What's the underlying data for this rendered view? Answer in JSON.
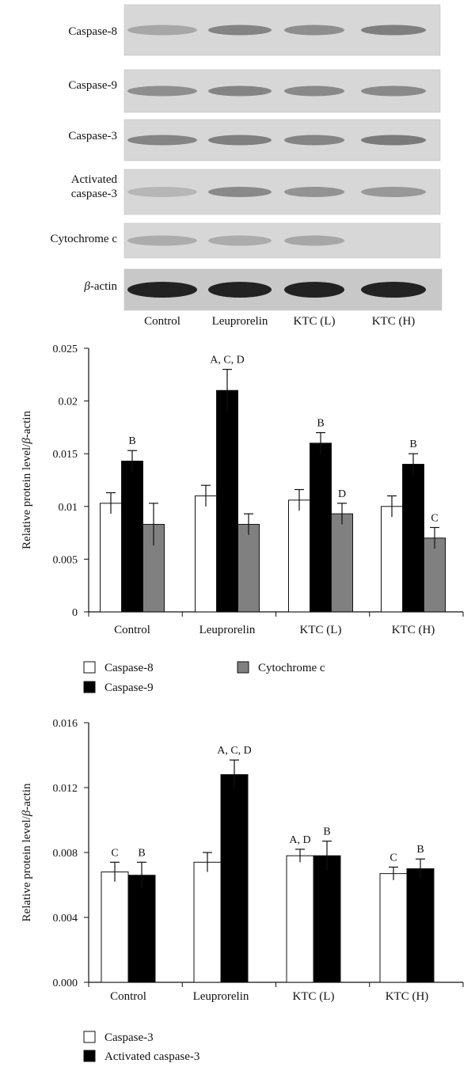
{
  "western_blot": {
    "rows": [
      {
        "label": "Caspase-8",
        "bands": [
          0.35,
          0.7,
          0.6,
          0.75
        ]
      },
      {
        "label": "Caspase-9",
        "bands": [
          0.6,
          0.7,
          0.65,
          0.65
        ]
      },
      {
        "label": "Caspase-3",
        "bands": [
          0.7,
          0.75,
          0.7,
          0.8
        ]
      },
      {
        "label_line1": "Activated",
        "label_line2": "caspase-3",
        "bands": [
          0.2,
          0.65,
          0.55,
          0.5
        ]
      },
      {
        "label": "Cytochrome c",
        "bands": [
          0.3,
          0.3,
          0.35,
          0.0
        ]
      },
      {
        "label_prefix": "β",
        "label_suffix": "-actin",
        "bands": [
          1.0,
          1.0,
          1.0,
          1.0
        ]
      }
    ],
    "lanes": [
      "Control",
      "Leuprorelin",
      "KTC (L)",
      "KTC (H)"
    ]
  },
  "chart_data": [
    {
      "type": "bar",
      "categories": [
        "Control",
        "Leuprorelin",
        "KTC (L)",
        "KTC (H)"
      ],
      "series": [
        {
          "name": "Caspase-8",
          "color": "#ffffff",
          "values": [
            0.0103,
            0.011,
            0.0106,
            0.01
          ],
          "errors": [
            0.001,
            0.001,
            0.001,
            0.001
          ],
          "labels": [
            "",
            "",
            "",
            ""
          ]
        },
        {
          "name": "Caspase-9",
          "color": "#000000",
          "values": [
            0.0143,
            0.021,
            0.016,
            0.014
          ],
          "errors": [
            0.001,
            0.002,
            0.001,
            0.001
          ],
          "labels": [
            "B",
            "A, C, D",
            "B",
            "B"
          ]
        },
        {
          "name": "Cytochrome c",
          "color": "#808080",
          "values": [
            0.0083,
            0.0083,
            0.0093,
            0.007
          ],
          "errors": [
            0.002,
            0.001,
            0.001,
            0.001
          ],
          "labels": [
            "",
            "",
            "D",
            "C"
          ]
        }
      ],
      "ylabel_prefix": "Relative protein level/",
      "ylabel_greek": "β",
      "ylabel_suffix": "-actin",
      "ylim": [
        0,
        0.025
      ],
      "yticks": [
        "0",
        "0.005",
        "0.01",
        "0.015",
        "0.02",
        "0.025"
      ],
      "legend": [
        {
          "name": "Caspase-8",
          "color": "#ffffff"
        },
        {
          "name": "Caspase-9",
          "color": "#000000"
        },
        {
          "name": "Cytochrome c",
          "color": "#808080"
        }
      ]
    },
    {
      "type": "bar",
      "categories": [
        "Control",
        "Leuprorelin",
        "KTC (L)",
        "KTC (H)"
      ],
      "series": [
        {
          "name": "Caspase-3",
          "color": "#ffffff",
          "values": [
            0.0068,
            0.0074,
            0.0078,
            0.0067
          ],
          "errors": [
            0.0006,
            0.0006,
            0.0004,
            0.0004
          ],
          "labels": [
            "C",
            "",
            "A, D",
            "C"
          ]
        },
        {
          "name": "Activated caspase-3",
          "color": "#000000",
          "values": [
            0.0066,
            0.0128,
            0.0078,
            0.007
          ],
          "errors": [
            0.0008,
            0.0009,
            0.0009,
            0.0006
          ],
          "labels": [
            "B",
            "A, C, D",
            "B",
            "B"
          ]
        }
      ],
      "ylabel_prefix": "Relative protein level/",
      "ylabel_greek": "β",
      "ylabel_suffix": "-actin",
      "ylim": [
        0,
        0.016
      ],
      "yticks": [
        "0.000",
        "0.004",
        "0.008",
        "0.012",
        "0.016"
      ],
      "legend": [
        {
          "name": "Caspase-3",
          "color": "#ffffff"
        },
        {
          "name": "Activated caspase-3",
          "color": "#000000"
        }
      ]
    }
  ]
}
